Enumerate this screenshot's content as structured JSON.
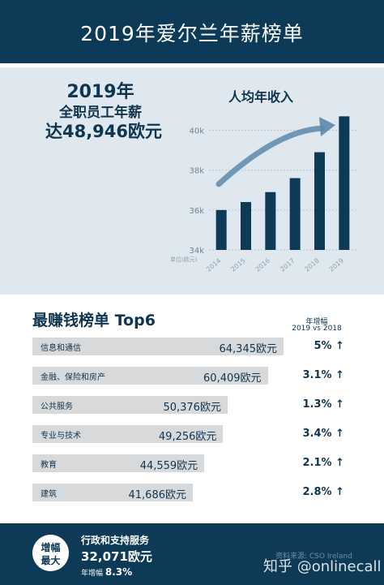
{
  "header": {
    "title": "2019年爱尔兰年薪榜单"
  },
  "summary": {
    "year": "2019年",
    "line2": "全职员工年薪",
    "line3": "达48,946欧元"
  },
  "chart_title": "人均年收入",
  "chart_data": {
    "type": "bar",
    "title": "人均年收入",
    "categories": [
      "2014",
      "2015",
      "2016",
      "2017",
      "2018",
      "2019"
    ],
    "values": [
      36000,
      36400,
      36900,
      37600,
      38900,
      40700
    ],
    "ylim": [
      34000,
      41000
    ],
    "yticks": [
      34000,
      36000,
      38000,
      40000
    ],
    "ytick_labels": [
      "34k",
      "36k",
      "38k",
      "40k"
    ],
    "unit_label": "单位(欧元)",
    "grid": true,
    "colors": {
      "bar": "#0d3a57",
      "grid": "#b8c6d0",
      "arrow": "#5a8aaa"
    }
  },
  "ranking": {
    "title": "最赚钱榜单 Top6",
    "growth_header_1": "年增幅",
    "growth_header_2": "2019 vs 2018",
    "rows": [
      {
        "label": "信息和通信",
        "value": "64,345欧元",
        "growth": "5%",
        "arrow": "↑",
        "amount": 64345
      },
      {
        "label": "金融、保险和房产",
        "value": "60,409欧元",
        "growth": "3.1%",
        "arrow": "↑",
        "amount": 60409
      },
      {
        "label": "公共服务",
        "value": "50,376欧元",
        "growth": "1.3%",
        "arrow": "↑",
        "amount": 50376
      },
      {
        "label": "专业与技术",
        "value": "49,256欧元",
        "growth": "3.4%",
        "arrow": "↑",
        "amount": 49256
      },
      {
        "label": "教育",
        "value": "44,559欧元",
        "growth": "2.1%",
        "arrow": "↑",
        "amount": 44559
      },
      {
        "label": "建筑",
        "value": "41,686欧元",
        "growth": "2.8%",
        "arrow": "↑",
        "amount": 41686
      }
    ]
  },
  "footer": {
    "badge_line1": "增幅",
    "badge_line2": "最大",
    "title": "行政和支持服务",
    "value": "32,071欧元",
    "growth_label": "年增幅",
    "growth_value": "8.3%",
    "source": "资料来源: CSO Ireland",
    "watermark": "知乎 @onlinecall"
  }
}
